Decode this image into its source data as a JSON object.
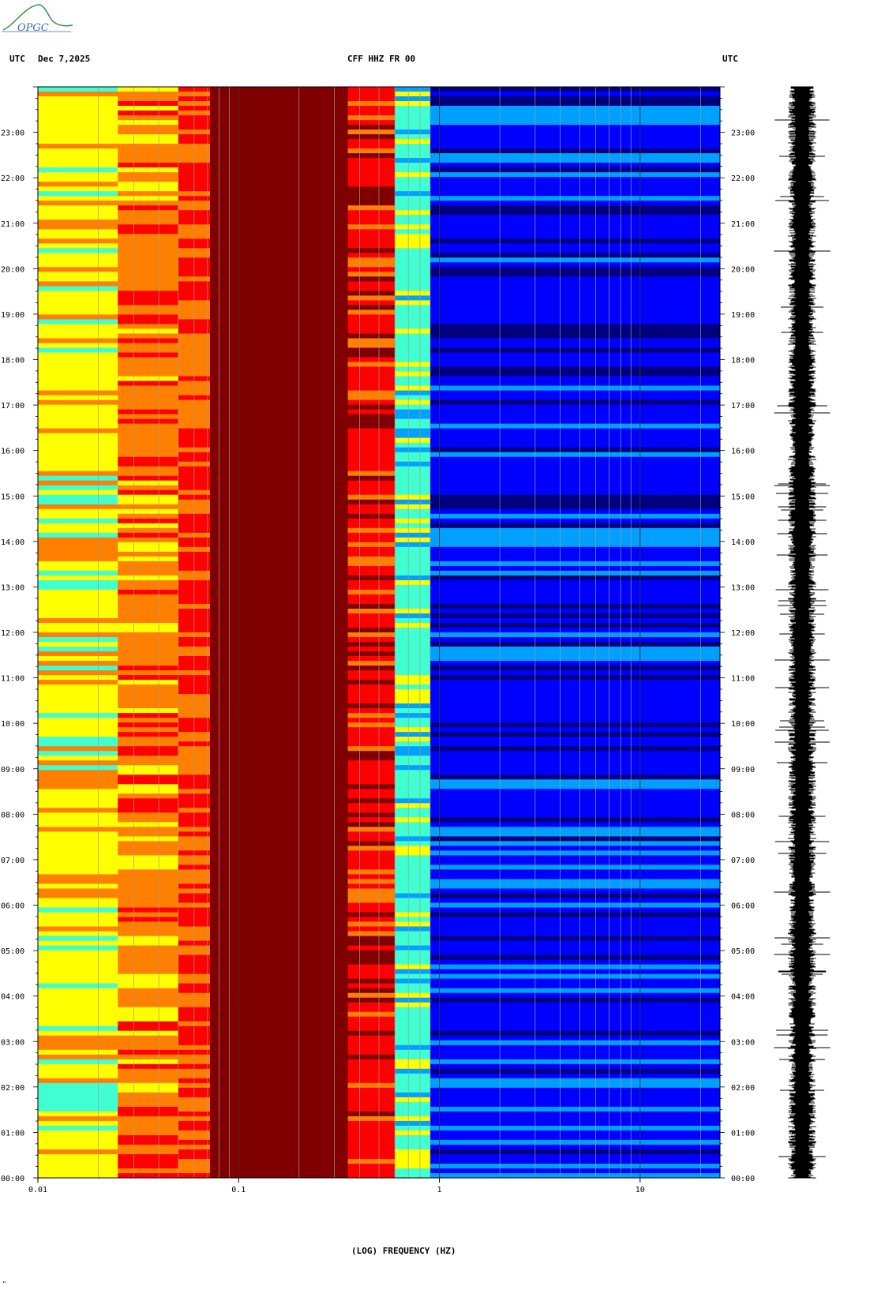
{
  "header": {
    "left_timezone": "UTC",
    "date": "Dec 7,2025",
    "station": "CFF HHZ FR 00",
    "right_timezone": "UTC"
  },
  "logo": {
    "text": "OPGC",
    "color": "#2a8a3a"
  },
  "footer": {
    "mark": "\""
  },
  "chart_data": {
    "type": "heatmap",
    "title": "CFF HHZ FR 00",
    "xlabel": "(LOG) FREQUENCY (HZ)",
    "xscale": "log",
    "xlim": [
      0.01,
      25
    ],
    "x_ticks": [
      {
        "value": 0.01,
        "label": "0.01"
      },
      {
        "value": 0.1,
        "label": "0.1"
      },
      {
        "value": 1,
        "label": "1"
      },
      {
        "value": 10,
        "label": "10"
      }
    ],
    "ylim": [
      "00:00",
      "24:00"
    ],
    "y_ticks": [
      "00:00",
      "01:00",
      "02:00",
      "03:00",
      "04:00",
      "05:00",
      "06:00",
      "07:00",
      "08:00",
      "09:00",
      "10:00",
      "11:00",
      "12:00",
      "13:00",
      "14:00",
      "15:00",
      "16:00",
      "17:00",
      "18:00",
      "19:00",
      "20:00",
      "21:00",
      "22:00",
      "23:00"
    ],
    "colormap": [
      "#00007f",
      "#0000ff",
      "#00a0ff",
      "#40ffd0",
      "#ffff00",
      "#ff8000",
      "#ff0000",
      "#800000"
    ],
    "freq_bands": [
      {
        "from": 0.01,
        "to": 0.025,
        "level": 4
      },
      {
        "from": 0.025,
        "to": 0.05,
        "level": 5
      },
      {
        "from": 0.05,
        "to": 0.072,
        "level": 5.5
      },
      {
        "from": 0.072,
        "to": 0.35,
        "level": 7
      },
      {
        "from": 0.35,
        "to": 0.6,
        "level": 6
      },
      {
        "from": 0.6,
        "to": 0.9,
        "level": 3
      },
      {
        "from": 0.9,
        "to": 25,
        "level": 1
      }
    ],
    "grid": true,
    "waveform_trace": true
  }
}
